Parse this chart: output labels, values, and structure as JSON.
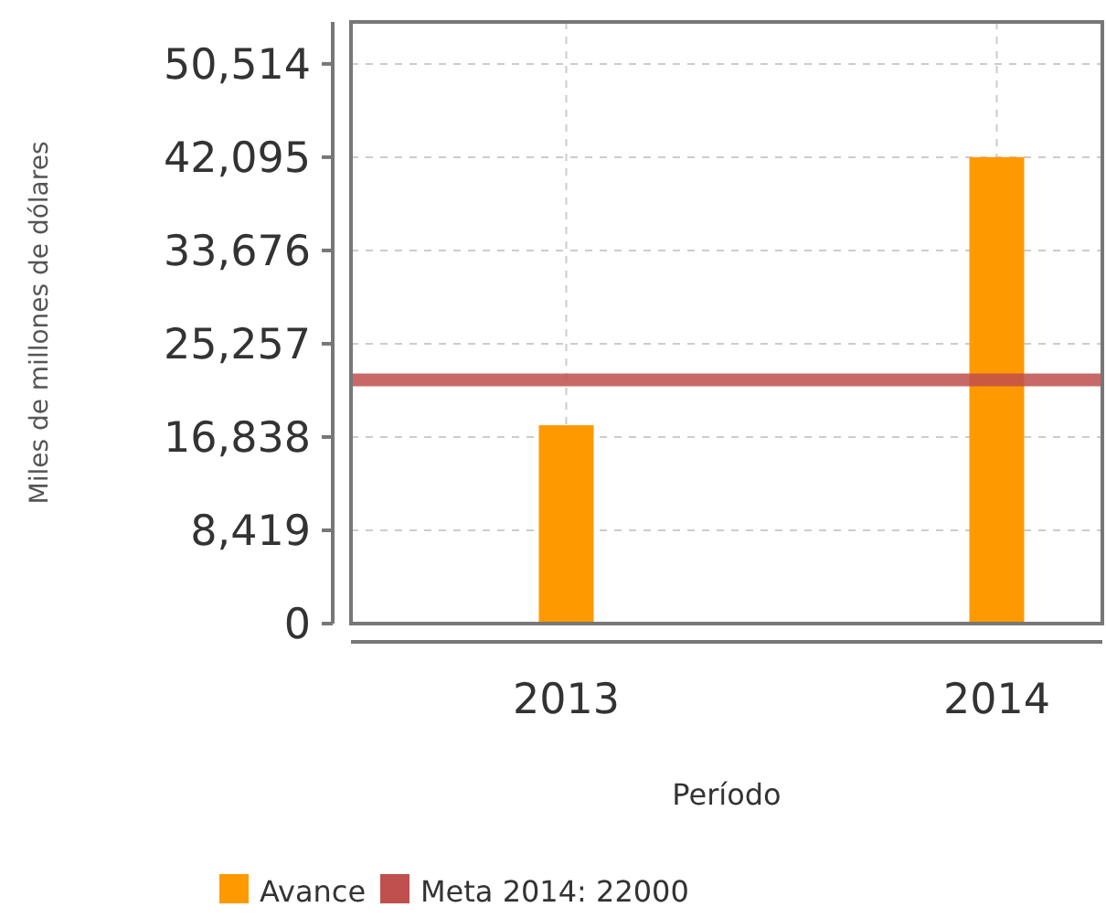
{
  "chart_data": {
    "type": "bar",
    "xlabel": "Período",
    "ylabel": "Miles de millones de dólares",
    "categories": [
      "2013",
      "2014"
    ],
    "series": [
      {
        "name": "Avance",
        "color": "#ff9900",
        "values": [
          17900,
          42100
        ]
      }
    ],
    "ylim": [
      0,
      54300
    ],
    "yticks": [
      0,
      {
        "value": 8419,
        "label": "8,419"
      },
      {
        "value": 16838,
        "label": "16,838"
      },
      {
        "value": 25257,
        "label": "25,257"
      },
      {
        "value": 33676,
        "label": "33,676"
      },
      {
        "value": 42095,
        "label": "42,095"
      },
      {
        "value": 50514,
        "label": "50,514"
      }
    ],
    "ref_lines": [
      {
        "axis": "y",
        "value": 22000,
        "label": "Meta 2014: 22000",
        "color": "#c0504d"
      }
    ],
    "grid": true,
    "legend": "bottom"
  }
}
